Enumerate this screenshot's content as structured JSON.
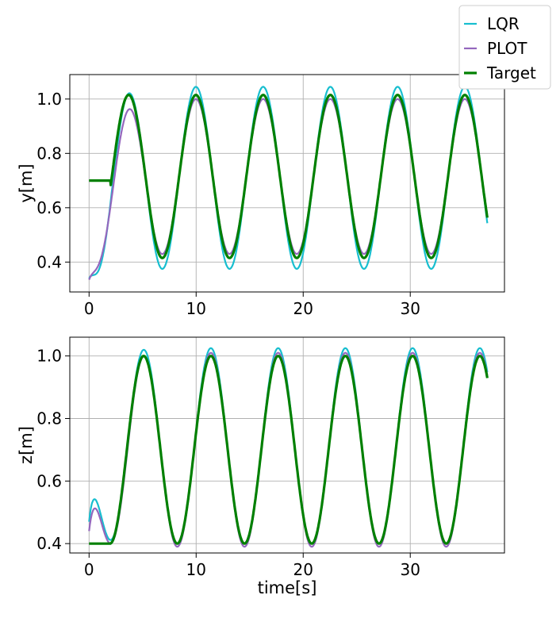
{
  "chart_data": [
    {
      "type": "line",
      "title": "",
      "xlabel": "",
      "ylabel": "y[m]",
      "xlim": [
        -1.8,
        38.8
      ],
      "ylim": [
        0.29,
        1.09
      ],
      "xticks": [
        0,
        10,
        20,
        30
      ],
      "yticks": [
        0.4,
        0.6,
        0.8,
        1.0
      ],
      "ytick_labels": [
        "0.4",
        "0.6",
        "0.8",
        "1.0"
      ],
      "grid": true,
      "signal": {
        "center": 0.715,
        "amplitude_target": 0.3,
        "amplitude_lqr_pos": 0.33,
        "amplitude_lqr_neg": 0.34,
        "amplitude_plot": 0.285,
        "period": 6.28,
        "phase_peak_t": 3.7,
        "x_end": 37.2,
        "target_init_value": 0.7,
        "target_init_until": 2.0,
        "lqr_start": 0.34,
        "plot_start": 0.335
      },
      "series": [
        {
          "name": "LQR",
          "color": "#17becf",
          "width": 2.2
        },
        {
          "name": "PLOT",
          "color": "#9467bd",
          "width": 2.2
        },
        {
          "name": "Target",
          "color": "#008000",
          "width": 3.2
        }
      ]
    },
    {
      "type": "line",
      "title": "",
      "xlabel": "time[s]",
      "ylabel": "z[m]",
      "xlim": [
        -1.8,
        38.8
      ],
      "ylim": [
        0.37,
        1.06
      ],
      "xticks": [
        0,
        10,
        20,
        30
      ],
      "yticks": [
        0.4,
        0.6,
        0.8,
        1.0
      ],
      "ytick_labels": [
        "0.4",
        "0.6",
        "0.8",
        "1.0"
      ],
      "grid": true,
      "signal": {
        "center": 0.7,
        "amplitude_target": 0.3,
        "amplitude_lqr_pos": 0.325,
        "amplitude_lqr_neg": 0.3,
        "amplitude_plot": 0.31,
        "period": 6.28,
        "phase_peak_t": 5.1,
        "x_end": 37.2,
        "target_init_value": 0.4,
        "target_init_until": 2.0,
        "lqr_start": 0.47,
        "plot_start": 0.44
      },
      "series": [
        {
          "name": "LQR",
          "color": "#17becf",
          "width": 2.2
        },
        {
          "name": "PLOT",
          "color": "#9467bd",
          "width": 2.2
        },
        {
          "name": "Target",
          "color": "#008000",
          "width": 3.2
        }
      ]
    }
  ],
  "legend": {
    "position": "top-right",
    "items": [
      {
        "label": "LQR",
        "color": "#17becf"
      },
      {
        "label": "PLOT",
        "color": "#9467bd"
      },
      {
        "label": "Target",
        "color": "#008000"
      }
    ]
  }
}
